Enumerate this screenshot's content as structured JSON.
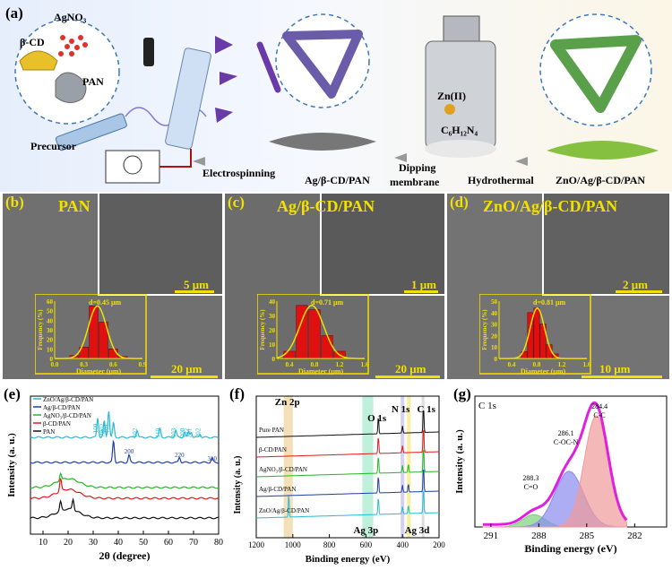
{
  "a": {
    "label": "(a)",
    "reagents": [
      "AgNO₃",
      "β-CD",
      "PAN"
    ],
    "precursor": "Precursor",
    "steps": [
      "Electrospinning",
      "Ag/β-CD/PAN",
      "Dipping",
      "membrane",
      "Hydrothermal",
      "ZnO/Ag/β-CD/PAN"
    ],
    "zn": "Zn(II)",
    "hmta": "C₆H₁₂N₄"
  },
  "b": {
    "label": "(b)",
    "title": "PAN",
    "scale_top": "5 μm",
    "scale_bottom": "20 μm",
    "d": "d=0.45 μm",
    "ylabel": "Frequency (%)",
    "xlabel": "Diameter (μm)",
    "yticks": [
      "0",
      "10",
      "20",
      "30",
      "40",
      "50",
      "60"
    ],
    "xticks": [
      "0.0",
      "0.3",
      "0.6",
      "0.9"
    ]
  },
  "c": {
    "label": "(c)",
    "title": "Ag/β-CD/PAN",
    "scale_top": "1 μm",
    "scale_bottom": "20 μm",
    "d": "d=0.71 μm",
    "ylabel": "Frequency (%)",
    "xlabel": "Diameter (μm)",
    "yticks": [
      "0",
      "10",
      "20",
      "30",
      "40"
    ],
    "xticks": [
      "0.4",
      "0.8",
      "1.2",
      "1.6"
    ]
  },
  "d": {
    "label": "(d)",
    "title": "ZnO/Ag/β-CD/PAN",
    "scale_top": "2 μm",
    "scale_bottom": "10 μm",
    "d": "d=0.81 μm",
    "ylabel": "Frequency (%)",
    "xlabel": "Diameter (μm)",
    "yticks": [
      "0",
      "10",
      "20",
      "30",
      "40",
      "50"
    ],
    "xticks": [
      "0.4",
      "0.8",
      "1.2",
      "1.6"
    ]
  },
  "e": {
    "label": "(e)",
    "xlabel": "2θ (degree)",
    "ylabel": "Intensity (a. u.)",
    "legend": [
      "ZnO/Ag/β-CD/PAN",
      "Ag/β-CD/PAN",
      "AgNO₃/β-CD/PAN",
      "β-CD/PAN",
      "PAN"
    ],
    "xticks": [
      "10",
      "20",
      "30",
      "40",
      "50",
      "60",
      "70",
      "80"
    ],
    "peaks": [
      "100",
      "002",
      "101",
      "Ag",
      "102",
      "110",
      "103",
      "200",
      "112",
      "201",
      "202",
      "200",
      "220",
      "310"
    ],
    "colors": [
      "#27b9d6",
      "#1e3faa",
      "#22b822",
      "#e01a1a",
      "#111111"
    ]
  },
  "f": {
    "label": "(f)",
    "xlabel": "Binding energy (eV)",
    "ylabel": "Intensity (a. u.)",
    "peaks": [
      "Zn 2p",
      "O 1s",
      "N 1s",
      "C 1s",
      "Ag 3p",
      "Ag 3d"
    ],
    "series": [
      "Pure PAN",
      "β-CD/PAN",
      "AgNO₃/β-CD/PAN",
      "Ag/β-CD/PAN",
      "ZnO/Ag/β-CD/PAN"
    ],
    "xticks": [
      "1200",
      "1000",
      "800",
      "600",
      "400",
      "200"
    ],
    "colors": [
      "#111111",
      "#e01a1a",
      "#22b822",
      "#1e3faa",
      "#27b9d6"
    ]
  },
  "g": {
    "label": "(g)",
    "title": "C 1s",
    "xlabel": "Binding energy (eV)",
    "ylabel": "Intensity (a. u.)",
    "xticks": [
      "291",
      "288",
      "285",
      "282"
    ],
    "peaks": [
      {
        "e": "288.3",
        "n": "C=O"
      },
      {
        "e": "286.1",
        "n": "C-OC-N"
      },
      {
        "e": "284.4",
        "n": "C-C"
      }
    ]
  }
}
